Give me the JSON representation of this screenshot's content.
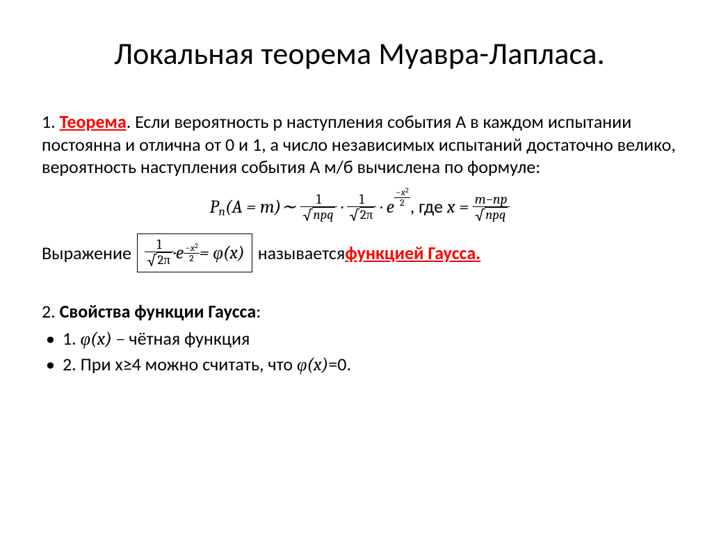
{
  "title": "Локальная теорема Муавра-Лапласа.",
  "p1_num": "1. ",
  "p1_keyword": "Теорема",
  "p1_after": ". Если вероятность р наступления события А в каждом испытании постоянна и отлична от 0 и 1, а число независимых испытаний достаточно велико, вероятность наступления события А м/б вычислена по формуле:",
  "f_left_P": "P",
  "f_left_n": "n",
  "f_left_paren": "(A = m)∼",
  "frac1_num": "1",
  "frac1_den": "npq",
  "dot": " · ",
  "frac2_num": "1",
  "frac2_den": "2π",
  "e": "e",
  "exp_minus": "−",
  "exp_num": "x",
  "exp_sq": "2",
  "exp_den": "2",
  "where": ", где ",
  "x_eq": "x = ",
  "xfrac_num": "m−np",
  "xfrac_den": "npq",
  "p2_before": "Выражение ",
  "box_eq": " = φ(x)",
  "p2_after": " называется ",
  "p2_keyword": "функцией Гаусса.",
  "p3_num": "2. ",
  "p3_bold": "Свойства функции Гаусса",
  "p3_colon": ":",
  "b1_a": "1. ",
  "b1_phi": "φ(x) − ",
  "b1_text": "чётная функция",
  "b2_a": "2. При x≥4 можно считать, что ",
  "b2_phi": "φ(x)",
  "b2_tail": "=0."
}
